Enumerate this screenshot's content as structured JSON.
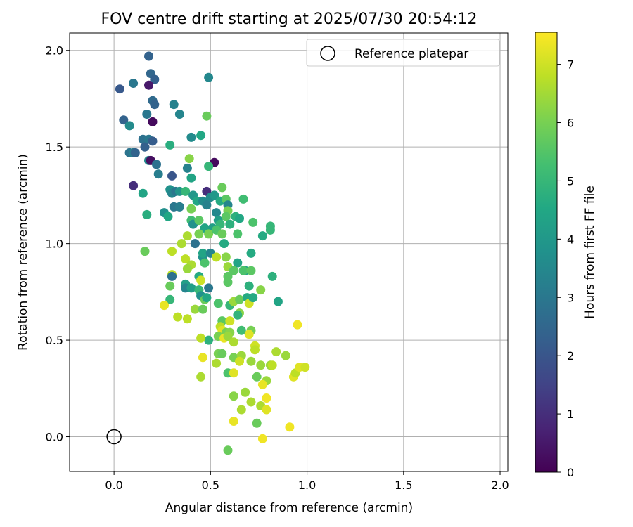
{
  "chart_data": {
    "type": "scatter",
    "title": "FOV centre drift starting at 2025/07/30 20:54:12",
    "xlabel": "Angular distance from reference (arcmin)",
    "ylabel": "Rotation from reference (arcmin)",
    "xlim": [
      -0.23,
      2.04
    ],
    "ylim": [
      -0.18,
      2.09
    ],
    "xticks": [
      0.0,
      0.5,
      1.0,
      1.5,
      2.0
    ],
    "yticks": [
      0.0,
      0.5,
      1.0,
      1.5,
      2.0
    ],
    "xtick_labels": [
      "0.0",
      "0.5",
      "1.0",
      "1.5",
      "2.0"
    ],
    "ytick_labels": [
      "0.0",
      "0.5",
      "1.0",
      "1.5",
      "2.0"
    ],
    "grid": true,
    "legend": {
      "position": "top-right",
      "entries": [
        "Reference platepar"
      ]
    },
    "reference": {
      "x": 0.0,
      "y": 0.0
    },
    "colorbar": {
      "label": "Hours from first FF file",
      "min": 0,
      "max": 7.55,
      "ticks": [
        0,
        1,
        2,
        3,
        4,
        5,
        6,
        7
      ],
      "tick_labels": [
        "0",
        "1",
        "2",
        "3",
        "4",
        "5",
        "6",
        "7"
      ],
      "colormap": "viridis"
    },
    "points": [
      [
        0.18,
        1.97,
        2.4
      ],
      [
        0.03,
        1.8,
        2.1
      ],
      [
        0.1,
        1.83,
        3.0
      ],
      [
        0.19,
        1.88,
        2.5
      ],
      [
        0.21,
        1.85,
        2.3
      ],
      [
        0.18,
        1.82,
        0.5
      ],
      [
        0.49,
        1.86,
        3.5
      ],
      [
        0.2,
        1.74,
        2.6
      ],
      [
        0.21,
        1.72,
        2.4
      ],
      [
        0.31,
        1.72,
        3.3
      ],
      [
        0.34,
        1.67,
        3.4
      ],
      [
        0.17,
        1.67,
        3.0
      ],
      [
        0.05,
        1.64,
        2.4
      ],
      [
        0.2,
        1.63,
        0.2
      ],
      [
        0.08,
        1.61,
        3.6
      ],
      [
        0.48,
        1.66,
        5.8
      ],
      [
        0.15,
        1.54,
        2.8
      ],
      [
        0.18,
        1.54,
        3.0
      ],
      [
        0.2,
        1.53,
        2.2
      ],
      [
        0.4,
        1.55,
        3.6
      ],
      [
        0.45,
        1.56,
        4.5
      ],
      [
        0.16,
        1.5,
        2.3
      ],
      [
        0.29,
        1.51,
        4.7
      ],
      [
        0.08,
        1.47,
        2.9
      ],
      [
        0.1,
        1.47,
        3.2
      ],
      [
        0.11,
        1.47,
        2.4
      ],
      [
        0.18,
        1.43,
        3.5
      ],
      [
        0.19,
        1.43,
        0.3
      ],
      [
        0.22,
        1.41,
        2.8
      ],
      [
        0.39,
        1.44,
        6.2
      ],
      [
        0.52,
        1.42,
        0.2
      ],
      [
        0.49,
        1.4,
        5.0
      ],
      [
        0.23,
        1.36,
        3.2
      ],
      [
        0.3,
        1.35,
        2.0
      ],
      [
        0.38,
        1.39,
        3.3
      ],
      [
        0.4,
        1.34,
        4.4
      ],
      [
        0.1,
        1.3,
        1.0
      ],
      [
        0.15,
        1.26,
        4.4
      ],
      [
        0.29,
        1.28,
        3.8
      ],
      [
        0.3,
        1.26,
        3.4
      ],
      [
        0.32,
        1.27,
        3.0
      ],
      [
        0.34,
        1.27,
        3.9
      ],
      [
        0.37,
        1.27,
        5.0
      ],
      [
        0.41,
        1.25,
        4.0
      ],
      [
        0.48,
        1.27,
        1.0
      ],
      [
        0.5,
        1.24,
        3.6
      ],
      [
        0.52,
        1.25,
        4.0
      ],
      [
        0.56,
        1.29,
        5.8
      ],
      [
        0.31,
        1.19,
        3.0
      ],
      [
        0.26,
        1.16,
        3.7
      ],
      [
        0.28,
        1.14,
        4.5
      ],
      [
        0.17,
        1.15,
        4.7
      ],
      [
        0.34,
        1.19,
        3.2
      ],
      [
        0.4,
        1.18,
        6.0
      ],
      [
        0.43,
        1.22,
        4.5
      ],
      [
        0.46,
        1.22,
        3.6
      ],
      [
        0.48,
        1.2,
        3.3
      ],
      [
        0.55,
        1.22,
        4.6
      ],
      [
        0.58,
        1.23,
        5.6
      ],
      [
        0.59,
        1.2,
        3.4
      ],
      [
        0.63,
        1.14,
        4.8
      ],
      [
        0.67,
        1.23,
        5.2
      ],
      [
        0.53,
        1.16,
        3.5
      ],
      [
        0.54,
        1.12,
        4.2
      ],
      [
        0.59,
        1.17,
        6.0
      ],
      [
        0.4,
        1.12,
        5.2
      ],
      [
        0.41,
        1.1,
        3.8
      ],
      [
        0.44,
        1.12,
        5.6
      ],
      [
        0.47,
        1.08,
        4.4
      ],
      [
        0.51,
        1.08,
        4.2
      ],
      [
        0.55,
        1.1,
        5.0
      ],
      [
        0.58,
        1.14,
        5.6
      ],
      [
        0.6,
        1.1,
        4.8
      ],
      [
        0.65,
        1.13,
        4.5
      ],
      [
        0.72,
        1.11,
        5.4
      ],
      [
        0.77,
        1.04,
        4.6
      ],
      [
        0.81,
        1.09,
        5.0
      ],
      [
        0.81,
        1.07,
        5.0
      ],
      [
        0.38,
        1.04,
        6.6
      ],
      [
        0.44,
        1.05,
        6.0
      ],
      [
        0.49,
        1.05,
        6.0
      ],
      [
        0.53,
        1.07,
        5.4
      ],
      [
        0.56,
        1.05,
        5.8
      ],
      [
        0.64,
        1.05,
        5.4
      ],
      [
        0.57,
        1.0,
        4.6
      ],
      [
        0.35,
        1.0,
        6.6
      ],
      [
        0.3,
        0.96,
        6.8
      ],
      [
        0.16,
        0.96,
        5.8
      ],
      [
        0.42,
        1.0,
        2.8
      ],
      [
        0.46,
        0.93,
        3.8
      ],
      [
        0.46,
        0.95,
        4.4
      ],
      [
        0.5,
        0.95,
        3.4
      ],
      [
        0.53,
        0.93,
        6.8
      ],
      [
        0.58,
        0.93,
        6.2
      ],
      [
        0.59,
        0.88,
        6.4
      ],
      [
        0.64,
        0.9,
        4.4
      ],
      [
        0.68,
        0.86,
        4.4
      ],
      [
        0.71,
        0.95,
        4.6
      ],
      [
        0.37,
        0.92,
        6.8
      ],
      [
        0.4,
        0.89,
        6.6
      ],
      [
        0.38,
        0.87,
        6.4
      ],
      [
        0.47,
        0.9,
        5.4
      ],
      [
        0.3,
        0.84,
        6.8
      ],
      [
        0.3,
        0.83,
        2.8
      ],
      [
        0.44,
        0.83,
        4.6
      ],
      [
        0.45,
        0.81,
        7.0
      ],
      [
        0.59,
        0.83,
        5.6
      ],
      [
        0.62,
        0.86,
        5.6
      ],
      [
        0.67,
        0.86,
        5.4
      ],
      [
        0.71,
        0.86,
        5.6
      ],
      [
        0.82,
        0.83,
        4.8
      ],
      [
        0.29,
        0.78,
        5.8
      ],
      [
        0.37,
        0.79,
        4.2
      ],
      [
        0.37,
        0.77,
        3.4
      ],
      [
        0.4,
        0.77,
        4.2
      ],
      [
        0.44,
        0.76,
        5.0
      ],
      [
        0.49,
        0.77,
        3.0
      ],
      [
        0.59,
        0.8,
        5.6
      ],
      [
        0.7,
        0.78,
        4.8
      ],
      [
        0.76,
        0.76,
        6.2
      ],
      [
        0.45,
        0.73,
        3.8
      ],
      [
        0.47,
        0.71,
        5.8
      ],
      [
        0.48,
        0.72,
        4.5
      ],
      [
        0.29,
        0.71,
        5.0
      ],
      [
        0.26,
        0.68,
        7.3
      ],
      [
        0.54,
        0.69,
        5.4
      ],
      [
        0.6,
        0.68,
        5.0
      ],
      [
        0.62,
        0.7,
        6.4
      ],
      [
        0.65,
        0.71,
        5.8
      ],
      [
        0.69,
        0.72,
        4.6
      ],
      [
        0.7,
        0.69,
        7.0
      ],
      [
        0.72,
        0.72,
        4.6
      ],
      [
        0.85,
        0.7,
        4.4
      ],
      [
        0.42,
        0.66,
        6.4
      ],
      [
        0.46,
        0.66,
        5.8
      ],
      [
        0.33,
        0.62,
        6.8
      ],
      [
        0.38,
        0.61,
        6.8
      ],
      [
        0.56,
        0.6,
        5.6
      ],
      [
        0.6,
        0.6,
        7.0
      ],
      [
        0.65,
        0.64,
        6.2
      ],
      [
        0.64,
        0.63,
        4.9
      ],
      [
        0.49,
        0.5,
        4.8
      ],
      [
        0.45,
        0.51,
        6.8
      ],
      [
        0.55,
        0.57,
        6.8
      ],
      [
        0.56,
        0.55,
        7.2
      ],
      [
        0.58,
        0.54,
        6.0
      ],
      [
        0.6,
        0.54,
        6.2
      ],
      [
        0.66,
        0.55,
        5.2
      ],
      [
        0.71,
        0.55,
        6.0
      ],
      [
        0.7,
        0.53,
        7.2
      ],
      [
        0.54,
        0.52,
        6.0
      ],
      [
        0.57,
        0.51,
        7.3
      ],
      [
        0.59,
        0.52,
        6.4
      ],
      [
        0.62,
        0.49,
        6.6
      ],
      [
        0.73,
        0.47,
        7.0
      ],
      [
        0.73,
        0.45,
        6.8
      ],
      [
        0.95,
        0.58,
        7.4
      ],
      [
        0.46,
        0.41,
        7.3
      ],
      [
        0.54,
        0.43,
        6.0
      ],
      [
        0.56,
        0.43,
        5.8
      ],
      [
        0.62,
        0.41,
        6.0
      ],
      [
        0.66,
        0.42,
        6.4
      ],
      [
        0.65,
        0.39,
        7.0
      ],
      [
        0.71,
        0.39,
        6.4
      ],
      [
        0.76,
        0.37,
        6.4
      ],
      [
        0.81,
        0.37,
        6.4
      ],
      [
        0.82,
        0.37,
        6.8
      ],
      [
        0.84,
        0.44,
        6.6
      ],
      [
        0.89,
        0.42,
        6.4
      ],
      [
        0.53,
        0.38,
        6.6
      ],
      [
        0.45,
        0.31,
        6.6
      ],
      [
        0.59,
        0.33,
        5.4
      ],
      [
        0.62,
        0.33,
        7.2
      ],
      [
        0.74,
        0.31,
        5.8
      ],
      [
        0.79,
        0.29,
        6.4
      ],
      [
        0.93,
        0.31,
        7.2
      ],
      [
        0.94,
        0.33,
        6.8
      ],
      [
        0.96,
        0.36,
        7.2
      ],
      [
        0.99,
        0.36,
        7.0
      ],
      [
        0.77,
        0.27,
        7.3
      ],
      [
        0.68,
        0.23,
        6.4
      ],
      [
        0.62,
        0.21,
        6.2
      ],
      [
        0.71,
        0.18,
        6.6
      ],
      [
        0.76,
        0.16,
        6.6
      ],
      [
        0.79,
        0.2,
        7.4
      ],
      [
        0.66,
        0.14,
        6.6
      ],
      [
        0.79,
        0.14,
        7.2
      ],
      [
        0.62,
        0.08,
        7.3
      ],
      [
        0.74,
        0.07,
        5.8
      ],
      [
        0.91,
        0.05,
        7.4
      ],
      [
        0.77,
        -0.01,
        7.4
      ],
      [
        0.59,
        -0.07,
        5.8
      ]
    ]
  }
}
